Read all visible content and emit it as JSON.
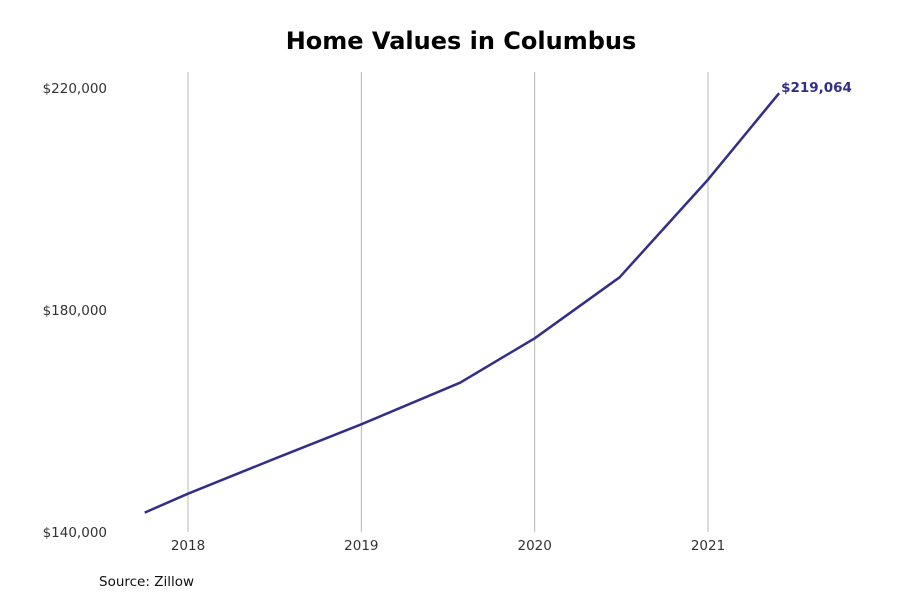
{
  "chart_data": {
    "type": "line",
    "title": "Home Values in Columbus",
    "xlabel": "",
    "ylabel": "",
    "x_ticks": [
      "2018",
      "2019",
      "2020",
      "2021"
    ],
    "y_ticks": [
      "$140,000",
      "$180,000",
      "$220,000"
    ],
    "ylim": [
      140000,
      220000
    ],
    "xlim": [
      2017.6,
      2021.85
    ],
    "grid": "vertical",
    "series": [
      {
        "x": [
          2017.75,
          2018.0,
          2018.5,
          2019.0,
          2019.57,
          2020.0,
          2020.49,
          2021.0,
          2021.41
        ],
        "values": [
          143500,
          146900,
          153200,
          159400,
          166900,
          174900,
          185900,
          203500,
          219064
        ],
        "color": "#332e8a"
      }
    ],
    "end_label": "$219,064"
  },
  "source": "Source: Zillow"
}
